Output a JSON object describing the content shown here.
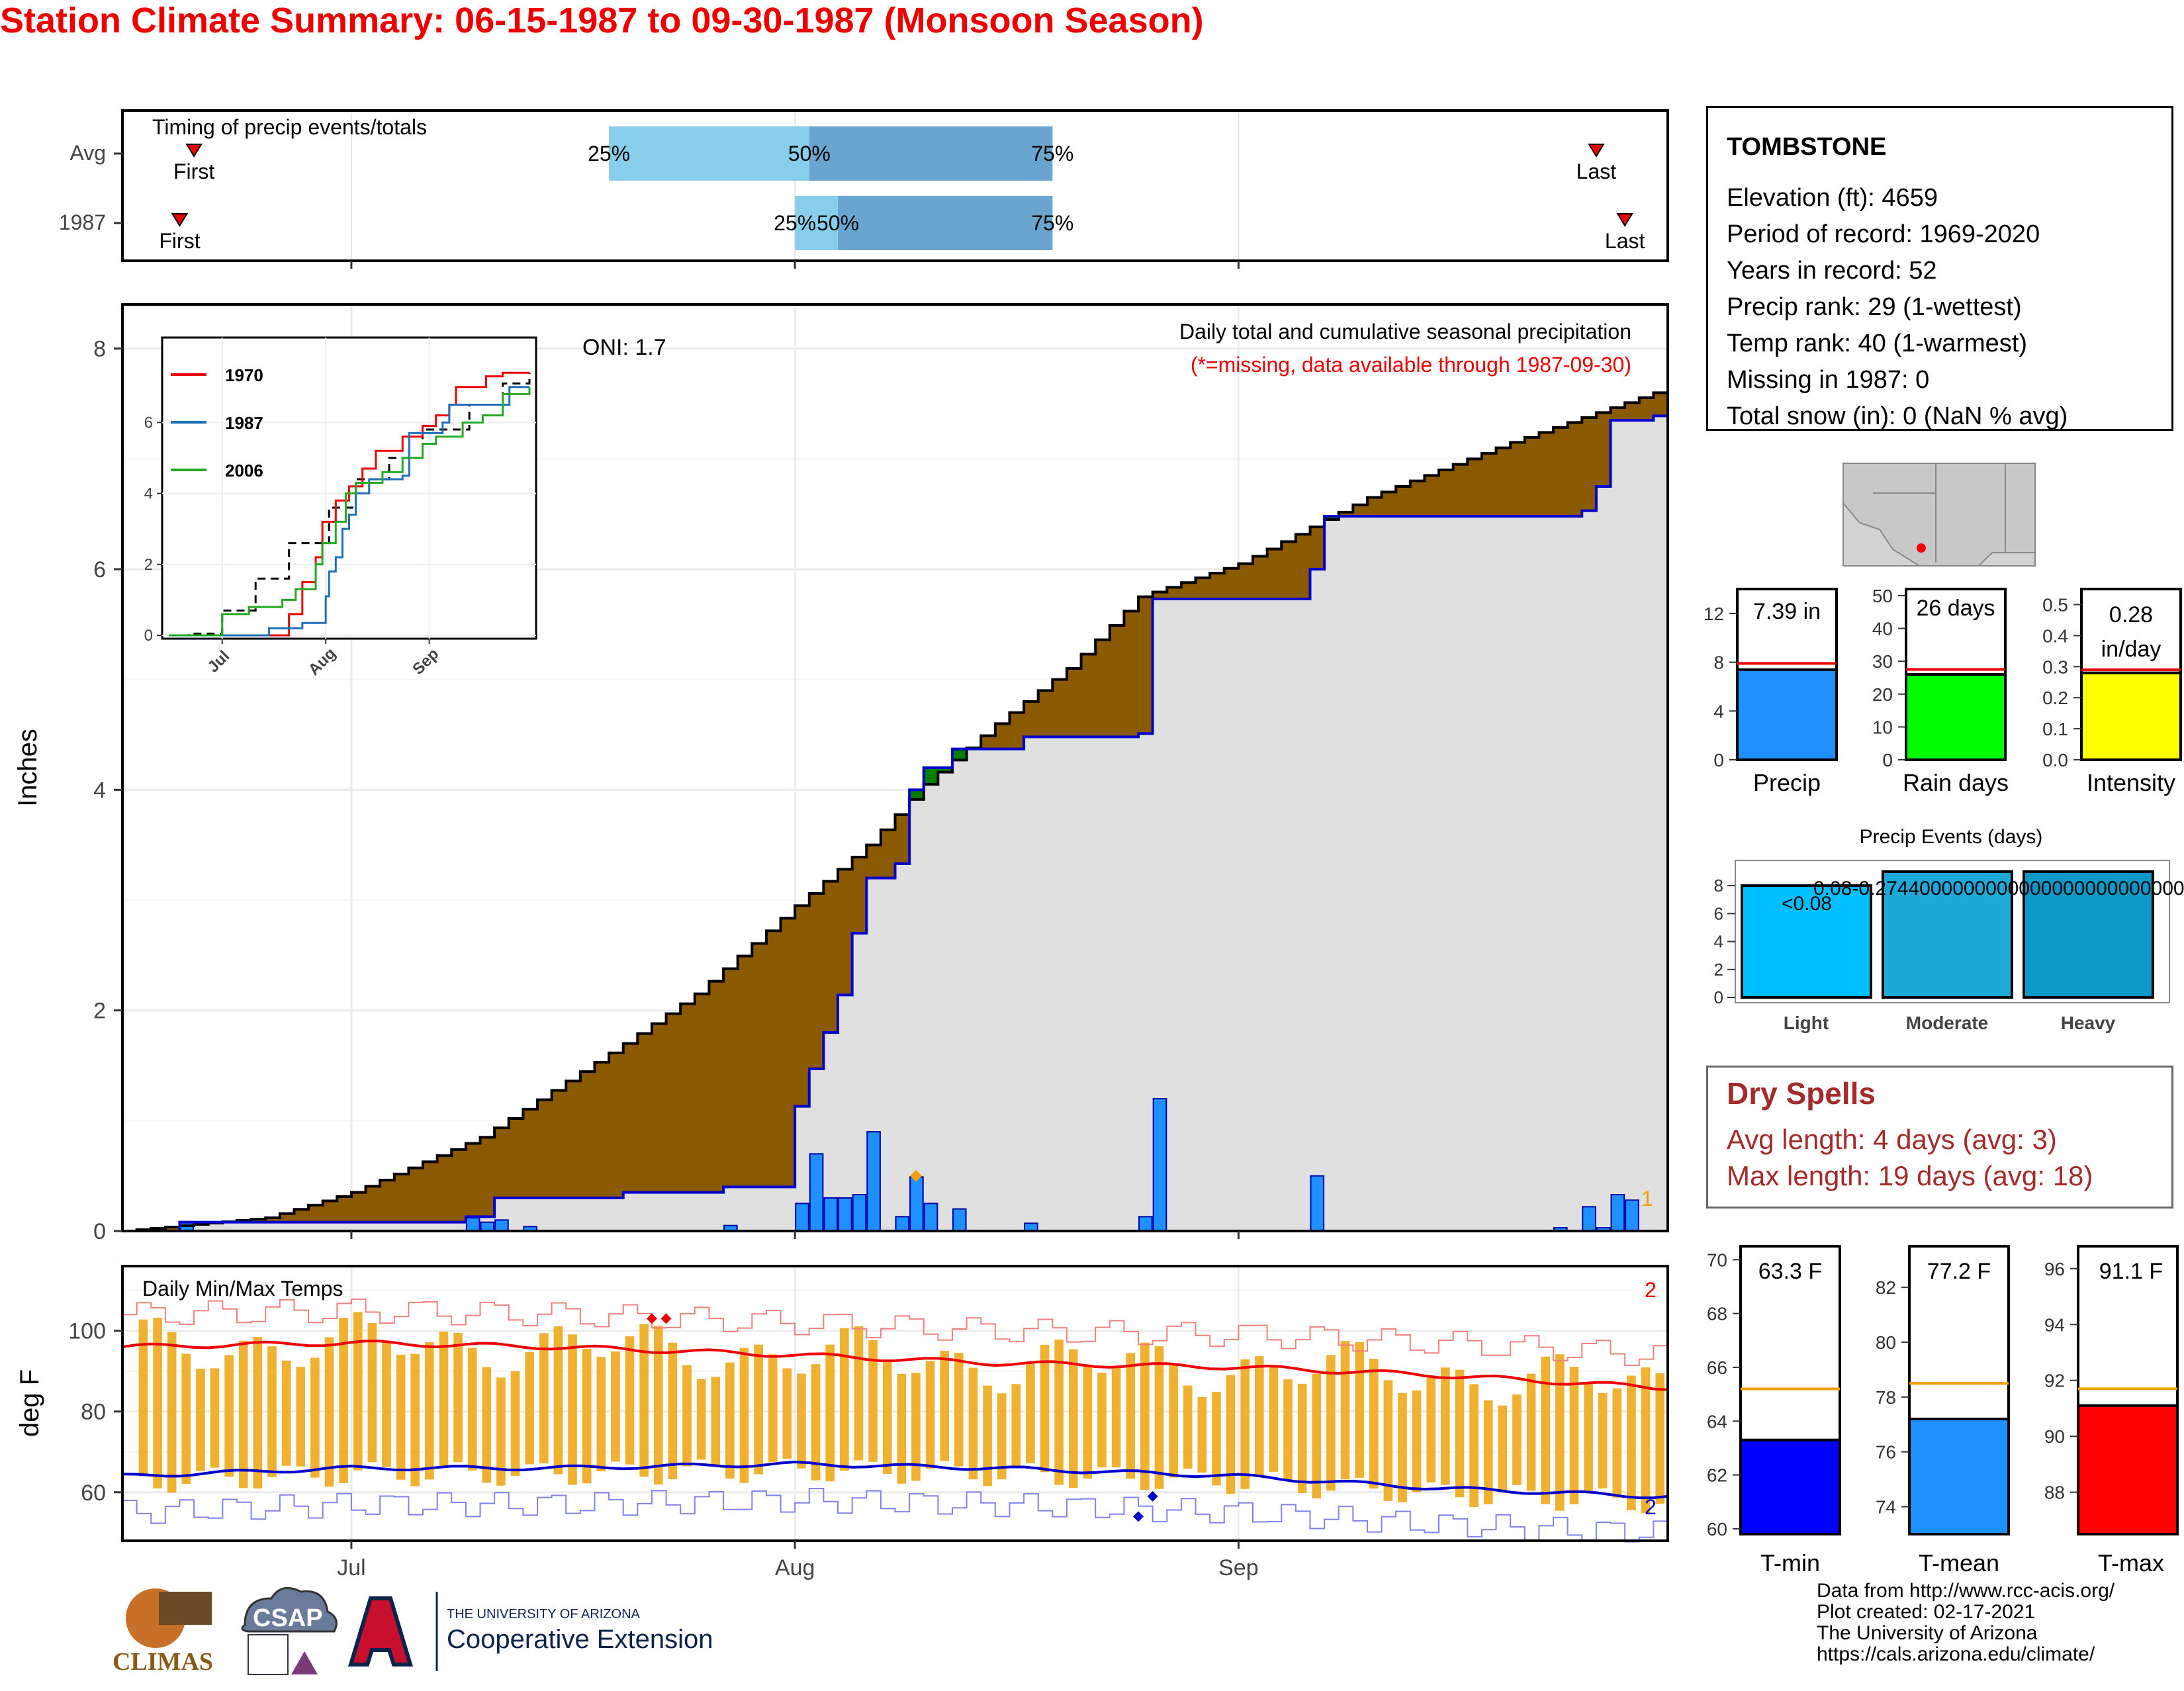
{
  "title": "Station Climate Summary: 06-15-1987 to 09-30-1987 (Monsoon Season)",
  "timing_panel": {
    "label": "Timing of precip events/totals",
    "rows": [
      {
        "label": "Avg",
        "first": "1987-06-20",
        "p25": "1987-07-19",
        "p50": "1987-08-02",
        "p75": "1987-08-19",
        "last": "1987-09-26"
      },
      {
        "label": "1987",
        "first": "1987-06-19",
        "p25": "1987-08-01",
        "p50": "1987-08-04",
        "p75": "1987-08-19",
        "last": "1987-09-28"
      }
    ],
    "first_label": "First",
    "last_label": "Last",
    "p25_label": "25%",
    "p50_label": "50%",
    "p75_label": "75%"
  },
  "station": {
    "name": "TOMBSTONE",
    "lines": [
      "Elevation (ft): 4659",
      "Period of record: 1969-2020",
      "Years in record: 52",
      "Precip rank: 29 (1-wettest)",
      "Temp rank: 40 (1-warmest)",
      "Missing in 1987: 0",
      "Total snow (in): 0 (NaN % avg)"
    ]
  },
  "precip_panel": {
    "ylabel": "Inches",
    "title": "Daily total and cumulative seasonal precipitation",
    "note": "(*=missing, data available through 1987-09-30)",
    "oni": "ONI: 1.7",
    "corner_label": "1",
    "y_ticks": [
      "0",
      "2",
      "4",
      "6",
      "8"
    ]
  },
  "inset": {
    "legend": [
      "1970",
      "1987",
      "2006"
    ],
    "y_ticks": [
      "0",
      "2",
      "4",
      "6"
    ],
    "x_ticks": [
      "Jul",
      "Aug",
      "Sep"
    ]
  },
  "temp_panel": {
    "ylabel": "deg F",
    "label": "Daily Min/Max Temps",
    "corner_max": "2",
    "corner_min": "2",
    "y_ticks": [
      "60",
      "80",
      "100"
    ],
    "x_ticks": [
      "Jul",
      "Aug",
      "Sep"
    ]
  },
  "summary_bars": {
    "precip": {
      "label": "Precip",
      "value_text": "7.39 in",
      "ticks": [
        "0",
        "4",
        "8",
        "12"
      ]
    },
    "raindays": {
      "label": "Rain days",
      "value_text": "26 days",
      "ticks": [
        "0",
        "10",
        "20",
        "30",
        "40",
        "50"
      ]
    },
    "intensity": {
      "label": "Intensity",
      "value_text_1": "0.28",
      "value_text_2": "in/day",
      "ticks": [
        "0.0",
        "0.1",
        "0.2",
        "0.3",
        "0.4",
        "0.5"
      ]
    }
  },
  "events": {
    "title": "Precip Events (days)",
    "ticks": [
      "0",
      "2",
      "4",
      "6",
      "8"
    ],
    "label_light": "<0.08",
    "label_overlap": "0.08-0.274400000000000000000000000000000",
    "categories": [
      "Light",
      "Moderate",
      "Heavy"
    ]
  },
  "dry_spells": {
    "title": "Dry Spells",
    "avg": "Avg length: 4 days (avg: 3)",
    "max": "Max length: 19 days (avg: 18)"
  },
  "temp_bars": {
    "tmin": {
      "label": "T-min",
      "value_text": "63.3 F",
      "ticks": [
        "60",
        "62",
        "64",
        "66",
        "68",
        "70"
      ]
    },
    "tmean": {
      "label": "T-mean",
      "value_text": "77.2 F",
      "ticks": [
        "74",
        "76",
        "78",
        "80",
        "82"
      ]
    },
    "tmax": {
      "label": "T-max",
      "value_text": "91.1 F",
      "ticks": [
        "88",
        "90",
        "92",
        "94",
        "96"
      ]
    }
  },
  "credits": [
    "Data from http://www.rcc-acis.org/",
    "Plot created: 02-17-2021",
    "The University of Arizona",
    "https://cals.arizona.edu/climate/"
  ],
  "logos": {
    "climas": "CLIMAS",
    "csap": "CSAP",
    "ua_small": "THE UNIVERSITY OF ARIZONA",
    "ua_big": "Cooperative Extension"
  },
  "colors": {
    "title": "#ee0000",
    "above_avg": "#8b5a00",
    "below_avg": "#008000",
    "cum_obs": "#0000cc",
    "daily_bar": "#1e90ff",
    "temp_bar": "#f0b030",
    "light": "#00bfff",
    "moderate": "#1ea8d8",
    "heavy": "#0b9ac8"
  },
  "chart_data": [
    {
      "type": "area",
      "title": "Daily total and cumulative seasonal precipitation",
      "ylabel": "Inches",
      "ylim": [
        0,
        8.4
      ],
      "x_range": [
        "1987-06-15",
        "1987-09-30"
      ],
      "series": [
        {
          "name": "Average cumulative",
          "x": [
            "06-15",
            "06-25",
            "07-01",
            "07-10",
            "07-20",
            "07-25",
            "08-01",
            "08-06",
            "08-10",
            "08-15",
            "08-20",
            "08-25",
            "09-01",
            "09-10",
            "09-20",
            "09-30"
          ],
          "values": [
            0,
            0.12,
            0.35,
            0.85,
            1.7,
            2.15,
            2.95,
            3.5,
            4.05,
            4.6,
            5.1,
            5.75,
            6.05,
            6.65,
            7.15,
            7.6
          ]
        },
        {
          "name": "1987 cumulative",
          "x": [
            "06-15",
            "06-19",
            "07-01",
            "07-09",
            "07-11",
            "07-20",
            "07-27",
            "08-01",
            "08-02",
            "08-03",
            "08-04",
            "08-05",
            "08-06",
            "08-08",
            "08-09",
            "08-10",
            "08-12",
            "08-17",
            "08-25",
            "08-26",
            "09-06",
            "09-07",
            "09-25",
            "09-26",
            "09-27",
            "09-30"
          ],
          "values": [
            0,
            0.08,
            0.08,
            0.13,
            0.3,
            0.35,
            0.4,
            1.13,
            1.47,
            1.8,
            2.14,
            2.7,
            3.2,
            3.33,
            4.0,
            4.2,
            4.37,
            4.48,
            4.51,
            5.73,
            6.0,
            6.48,
            6.53,
            6.75,
            7.35,
            7.39
          ]
        },
        {
          "name": "1987 daily",
          "x": [
            "06-19",
            "07-09",
            "07-10",
            "07-11",
            "07-13",
            "07-27",
            "08-01",
            "08-02",
            "08-03",
            "08-04",
            "08-05",
            "08-06",
            "08-08",
            "08-09",
            "08-10",
            "08-12",
            "08-17",
            "08-25",
            "08-26",
            "09-06",
            "09-23",
            "09-25",
            "09-26",
            "09-27",
            "09-28"
          ],
          "values": [
            0.08,
            0.12,
            0.08,
            0.1,
            0.04,
            0.05,
            0.25,
            0.7,
            0.3,
            0.3,
            0.33,
            0.9,
            0.13,
            0.49,
            0.25,
            0.2,
            0.07,
            0.13,
            1.2,
            0.5,
            0.03,
            0.22,
            0.03,
            0.33,
            0.28
          ]
        }
      ]
    },
    {
      "type": "line",
      "title": "Daily Min/Max Temps",
      "ylabel": "deg F",
      "ylim": [
        48,
        116
      ],
      "series": [
        {
          "name": "Avg max",
          "x": [
            "06-15",
            "07-01",
            "07-15",
            "08-01",
            "08-15",
            "09-01",
            "09-15",
            "09-30"
          ],
          "values": [
            96,
            97,
            96,
            94,
            92,
            91,
            89,
            86
          ]
        },
        {
          "name": "Avg min",
          "x": [
            "06-15",
            "07-01",
            "07-15",
            "08-01",
            "08-15",
            "09-01",
            "09-15",
            "09-30"
          ],
          "values": [
            64,
            66,
            66,
            67,
            66,
            64,
            61,
            59
          ]
        }
      ]
    },
    {
      "type": "bar",
      "title": "Precip Events (days)",
      "categories": [
        "Light",
        "Moderate",
        "Heavy"
      ],
      "values": [
        8,
        9,
        9
      ],
      "ylim": [
        0,
        9
      ]
    },
    {
      "type": "bar",
      "categories": [
        "Precip",
        "Rain days",
        "Intensity",
        "T-min",
        "T-mean",
        "T-max"
      ],
      "values": [
        7.39,
        26,
        0.28,
        63.3,
        77.2,
        91.1
      ],
      "averages": [
        7.9,
        27.5,
        0.29,
        65.2,
        78.5,
        91.7
      ]
    }
  ]
}
